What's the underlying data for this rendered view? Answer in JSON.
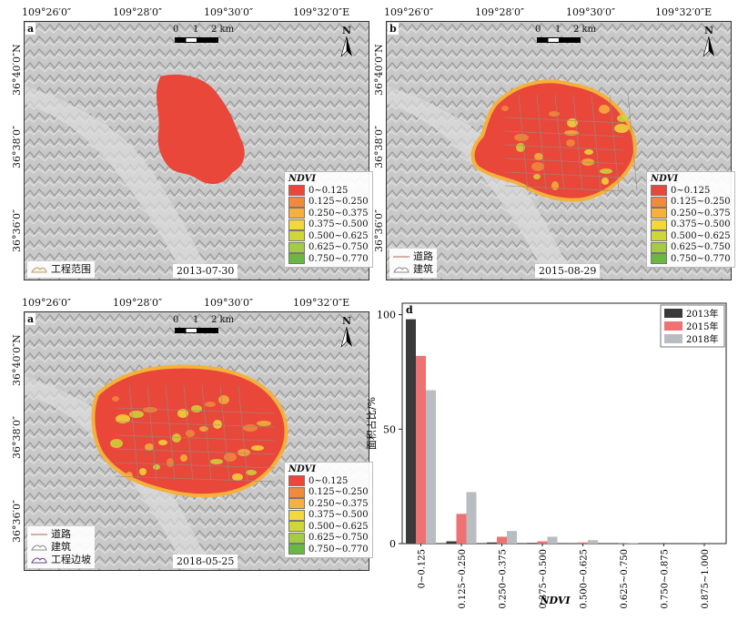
{
  "maps": [
    {
      "letter": "a",
      "date": "2013-07-30",
      "top_ticks": [
        "109°26′0″",
        "109°28′0″",
        "109°30′0″",
        "109°32′0″E"
      ],
      "left_ticks": [
        "36°40′0″N",
        "36°38′0″",
        "36°36′0″"
      ],
      "legend_title": "NDVI",
      "legend_items": [
        "0~0.125",
        "0.125~0.250",
        "0.250~0.375",
        "0.375~0.500",
        "0.500~0.625",
        "0.625~0.750",
        "0.750~0.770"
      ],
      "keys": [
        "工程范围"
      ]
    },
    {
      "letter": "b",
      "date": "2015-08-29",
      "top_ticks": [
        "109°26′0″",
        "109°28′0″",
        "109°30′0″",
        "109°32′0″E"
      ],
      "left_ticks": [
        "36°40′0″N",
        "36°38′0″",
        "36°36′0″"
      ],
      "legend_title": "NDVI",
      "legend_items": [
        "0~0.125",
        "0.125~0.250",
        "0.250~0.375",
        "0.375~0.500",
        "0.500~0.625",
        "0.625~0.750",
        "0.750~0.770"
      ],
      "keys": [
        "道路",
        "建筑"
      ]
    },
    {
      "letter": "a",
      "date": "2018-05-25",
      "top_ticks": [
        "109°26′0″",
        "109°28′0″",
        "109°30′0″",
        "109°32′0″E"
      ],
      "left_ticks": [
        "36°40′0″N",
        "36°38′0″",
        "36°36′0″"
      ],
      "legend_title": "NDVI",
      "legend_items": [
        "0~0.125",
        "0.125~0.250",
        "0.250~0.375",
        "0.375~0.500",
        "0.500~0.625",
        "0.625~0.750",
        "0.750~0.770"
      ],
      "keys": [
        "道路",
        "建筑",
        "工程边坡"
      ]
    }
  ],
  "scale_bar": {
    "labels": [
      "0",
      "1",
      "2 km"
    ]
  },
  "north_label": "N",
  "ndvi_colors": [
    "#e8473a",
    "#f08a3c",
    "#f4b13b",
    "#f2d83a",
    "#cfd63a",
    "#a3cc44",
    "#6ab844"
  ],
  "chart_data": {
    "type": "bar",
    "panel_letter": "d",
    "categories": [
      "0~0.125",
      "0.125~0.250",
      "0.250~0.375",
      "0.375~0.500",
      "0.500~0.625",
      "0.625~0.750",
      "0.750~0.875",
      "0.875~1.000"
    ],
    "series": [
      {
        "name": "2013年",
        "color": "#3a3a3a",
        "values": [
          98,
          1,
          0.5,
          0.3,
          0.1,
          0,
          0,
          0
        ]
      },
      {
        "name": "2015年",
        "color": "#ee7272",
        "values": [
          82,
          13,
          3,
          1,
          0.5,
          0.1,
          0,
          0
        ]
      },
      {
        "name": "2018年",
        "color": "#b9bcc0",
        "values": [
          67,
          22.5,
          5.5,
          3,
          1.5,
          0.3,
          0,
          0
        ]
      }
    ],
    "xlabel": "NDVI",
    "ylabel": "面积占比/%",
    "ylim": [
      0,
      105
    ],
    "yticks": [
      0,
      50,
      100
    ],
    "legend_position": "top-right"
  }
}
